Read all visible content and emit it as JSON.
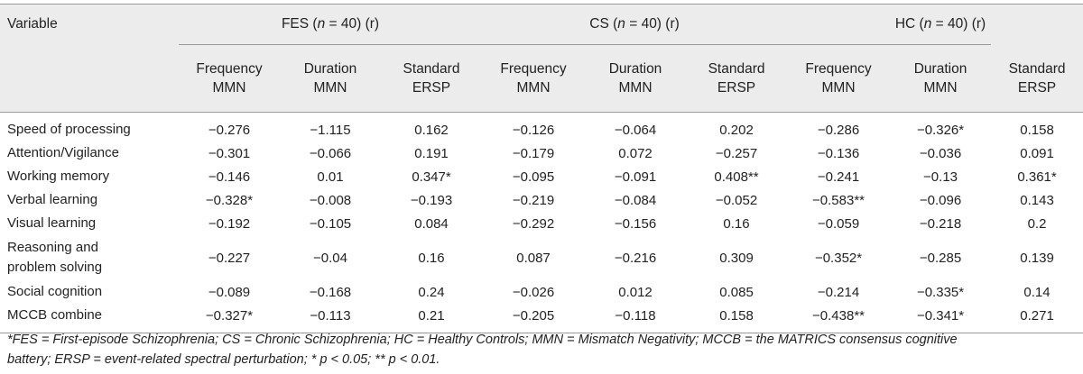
{
  "table": {
    "variable_header": "Variable",
    "groups": [
      {
        "prefix": "FES (",
        "n_label": "n",
        "suffix": " = 40) (r)"
      },
      {
        "prefix": "CS (",
        "n_label": "n",
        "suffix": " = 40) (r)"
      },
      {
        "prefix": "HC (",
        "n_label": "n",
        "suffix": " = 40) (r)"
      }
    ],
    "subheaders": [
      {
        "line1": "Frequency",
        "line2": "MMN"
      },
      {
        "line1": "Duration",
        "line2": "MMN"
      },
      {
        "line1": "Standard",
        "line2": "ERSP"
      },
      {
        "line1": "Frequency",
        "line2": "MMN"
      },
      {
        "line1": "Duration",
        "line2": "MMN"
      },
      {
        "line1": "Standard",
        "line2": "ERSP"
      },
      {
        "line1": "Frequency",
        "line2": "MMN"
      },
      {
        "line1": "Duration",
        "line2": "MMN"
      },
      {
        "line1": "Standard",
        "line2": "ERSP"
      }
    ],
    "rows": [
      {
        "var1": "Speed of processing",
        "var2": "",
        "cells": [
          "−0.276",
          "−1.115",
          "0.162",
          "−0.126",
          "−0.064",
          "0.202",
          "−0.286",
          "−0.326*",
          "0.158"
        ]
      },
      {
        "var1": "Attention/Vigilance",
        "var2": "",
        "cells": [
          "−0.301",
          "−0.066",
          "0.191",
          "−0.179",
          "0.072",
          "−0.257",
          "−0.136",
          "−0.036",
          "0.091"
        ]
      },
      {
        "var1": "Working memory",
        "var2": "",
        "cells": [
          "−0.146",
          "0.01",
          "0.347*",
          "−0.095",
          "−0.091",
          "0.408**",
          "−0.241",
          "−0.13",
          "0.361*"
        ]
      },
      {
        "var1": "Verbal learning",
        "var2": "",
        "cells": [
          "−0.328*",
          "−0.008",
          "−0.193",
          "−0.219",
          "−0.084",
          "−0.052",
          "−0.583**",
          "−0.096",
          "0.143"
        ]
      },
      {
        "var1": "Visual learning",
        "var2": "",
        "cells": [
          "−0.192",
          "−0.105",
          "0.084",
          "−0.292",
          "−0.156",
          "0.16",
          "−0.059",
          "−0.218",
          "0.2"
        ]
      },
      {
        "var1": "Reasoning and",
        "var2": "problem solving",
        "cells": [
          "−0.227",
          "−0.04",
          "0.16",
          "0.087",
          "−0.216",
          "0.309",
          "−0.352*",
          "−0.285",
          "0.139"
        ]
      },
      {
        "var1": "Social cognition",
        "var2": "",
        "cells": [
          "−0.089",
          "−0.168",
          "0.24",
          "−0.026",
          "0.012",
          "0.085",
          "−0.214",
          "−0.335*",
          "0.14"
        ]
      },
      {
        "var1": "MCCB combine",
        "var2": "",
        "cells": [
          "−0.327*",
          "−0.113",
          "0.21",
          "−0.205",
          "−0.118",
          "0.158",
          "−0.438**",
          "−0.341*",
          "0.271"
        ]
      }
    ]
  },
  "footnote": {
    "line1": "*FES = First-episode Schizophrenia; CS = Chronic Schizophrenia; HC = Healthy Controls; MMN = Mismatch Negativity; MCCB = the MATRICS consensus cognitive",
    "line2": "battery; ERSP = event-related spectral perturbation; * p < 0.05; ** p < 0.01."
  }
}
